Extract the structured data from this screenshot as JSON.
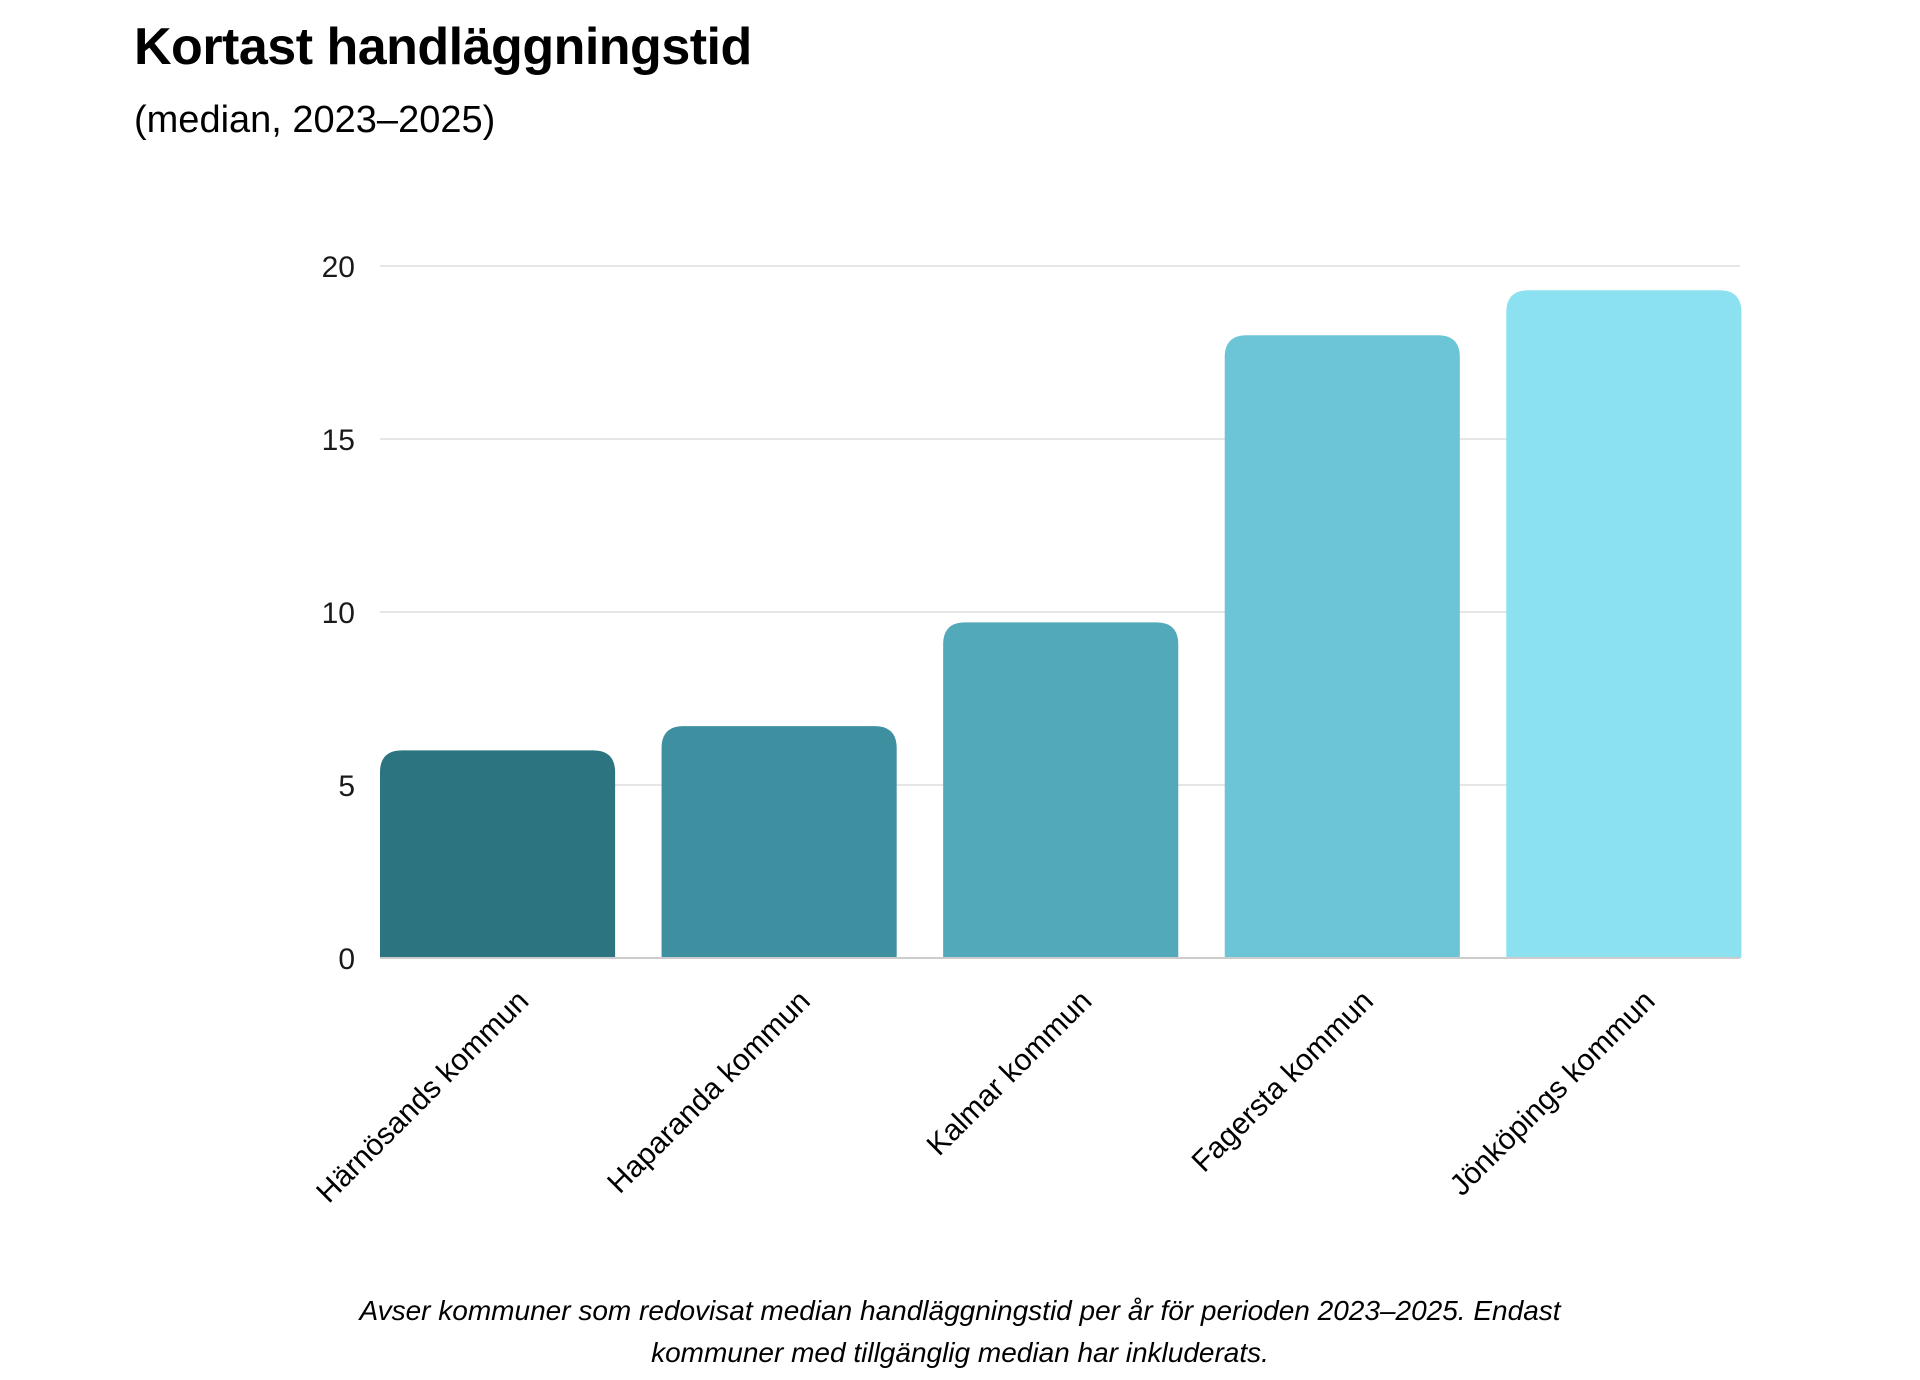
{
  "header": {
    "title": "Kortast handläggningstid",
    "subtitle": "(median, 2023–2025)"
  },
  "footnote": {
    "line1": "Avser kommuner som redovisat median handläggningstid per år för perioden 2023–2025. Endast",
    "line2": "kommuner med tillgänglig median har inkluderats."
  },
  "chart_data": {
    "type": "bar",
    "title": "Kortast handläggningstid",
    "subtitle": "(median, 2023–2025)",
    "categories": [
      "Härnösands kommun",
      "Haparanda kommun",
      "Kalmar kommun",
      "Fagersta kommun",
      "Jönköpings kommun"
    ],
    "values": [
      6.0,
      6.7,
      9.7,
      18.0,
      19.3
    ],
    "bar_colors": [
      "#2c7480",
      "#3e90a1",
      "#52a9b9",
      "#6cc5d6",
      "#8be1f0"
    ],
    "xlabel": "",
    "ylabel": "",
    "ylim": [
      0,
      20
    ],
    "yticks": [
      "0",
      "5",
      "10",
      "15",
      "20"
    ],
    "grid": true,
    "legend": "none"
  }
}
